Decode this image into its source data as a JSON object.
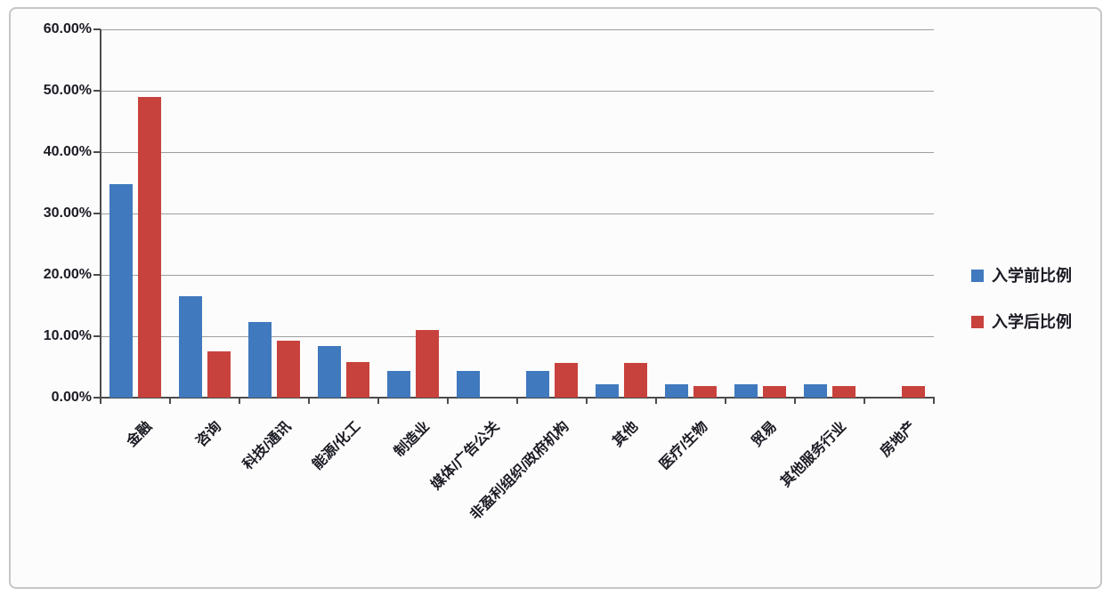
{
  "chart_data": {
    "type": "bar",
    "categories": [
      "金融",
      "咨询",
      "科技/通讯",
      "能源/化工",
      "制造业",
      "媒体/广告公关",
      "非盈利组织/政府机构",
      "其他",
      "医疗/生物",
      "贸易",
      "其他服务行业",
      "房地产"
    ],
    "series": [
      {
        "name": "入学前比例",
        "color": "#4079be",
        "values": [
          34.8,
          16.5,
          12.3,
          8.4,
          4.3,
          4.3,
          4.3,
          2.2,
          2.2,
          2.2,
          2.2,
          0
        ]
      },
      {
        "name": "入学后比例",
        "color": "#c8423d",
        "values": [
          49.0,
          7.5,
          9.3,
          5.8,
          11.0,
          0,
          5.7,
          5.7,
          1.9,
          1.9,
          1.9,
          1.9
        ]
      }
    ],
    "title": "",
    "xlabel": "",
    "ylabel": "",
    "ylim": [
      0,
      60
    ],
    "ytick_step": 10,
    "ytick_labels": [
      "0.00%",
      "10.00%",
      "20.00%",
      "30.00%",
      "40.00%",
      "50.00%",
      "60.00%"
    ],
    "grid": true,
    "legend_position": "right",
    "colors": {
      "grid": "#9e9e9e",
      "axis": "#4c4c4c",
      "text": "#1b1b24",
      "frame_border": "#c6c6c6",
      "background": "#fcfcfc"
    }
  }
}
